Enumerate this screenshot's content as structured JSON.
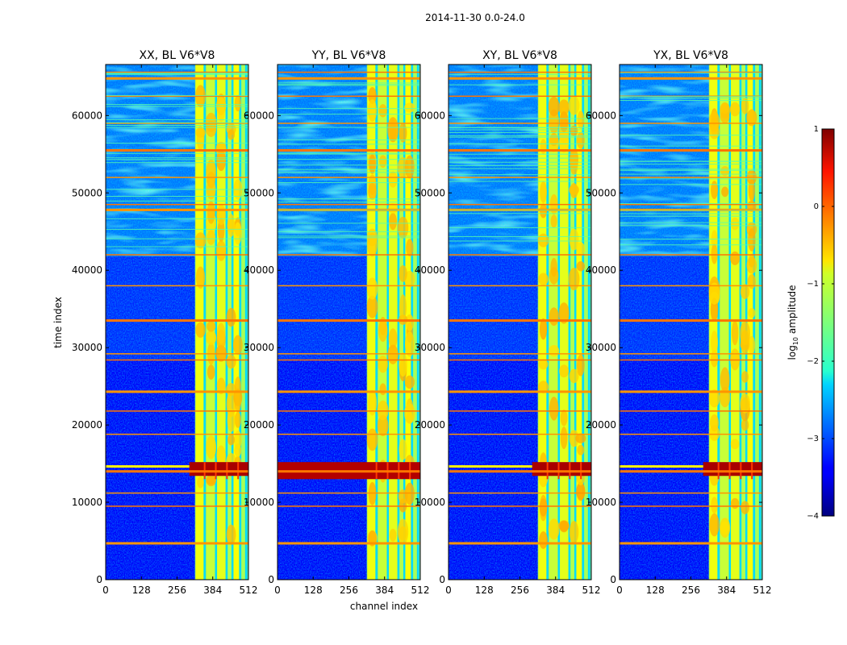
{
  "chart_data": {
    "type": "heatmap",
    "suptitle": "2014-11-30 0.0-24.0",
    "xlabel": "channel index",
    "ylabel": "time index",
    "xlim": [
      0,
      512
    ],
    "ylim": [
      0,
      66600
    ],
    "x_ticks": [
      0,
      128,
      256,
      384,
      512
    ],
    "y_ticks": [
      0,
      10000,
      20000,
      30000,
      40000,
      50000,
      60000
    ],
    "panels": [
      {
        "title": "XX, BL V6*V8",
        "pol": "XX"
      },
      {
        "title": "YY, BL V6*V8",
        "pol": "YY"
      },
      {
        "title": "XY, BL V6*V8",
        "pol": "XY"
      },
      {
        "title": "YX, BL V6*V8",
        "pol": "YX"
      }
    ],
    "colorbar": {
      "label": "log₁₀ amplitude",
      "label_main": "log",
      "label_sub": "10",
      "label_tail": " amplitude",
      "range": [
        -4,
        1
      ],
      "ticks": [
        1,
        0,
        -1,
        -2,
        -3,
        -4
      ],
      "tick_labels": [
        "1",
        "0",
        "−1",
        "−2",
        "−3",
        "−4"
      ],
      "colormap": "jet"
    },
    "features": {
      "bright_band_channels": [
        320,
        400,
        456,
        482
      ],
      "rfi_burst_time_range": [
        13000,
        15200
      ],
      "flagged_rows": [
        4700,
        9500,
        11200,
        14000,
        18800,
        21800,
        24300,
        28400,
        29200,
        33500,
        38000,
        42000,
        47800,
        48500,
        52000,
        55500,
        59000,
        62500,
        64800,
        65600
      ]
    }
  }
}
